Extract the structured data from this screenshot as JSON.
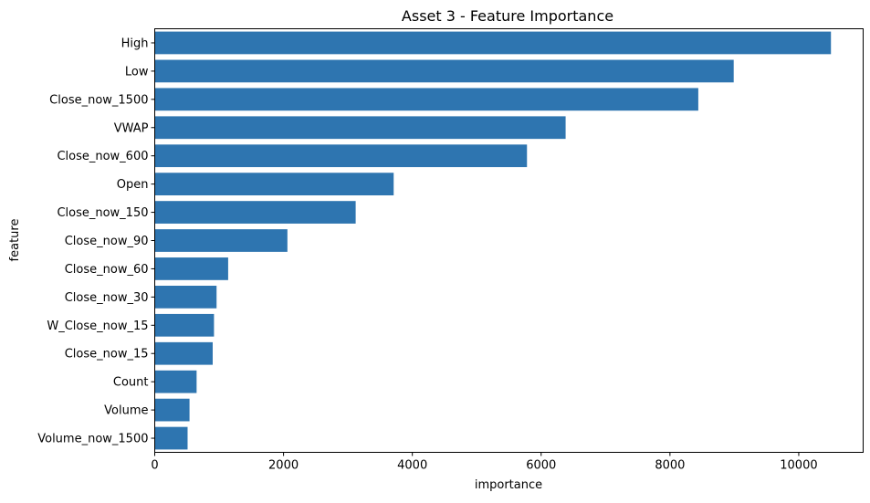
{
  "chart_data": {
    "type": "bar",
    "orientation": "horizontal",
    "title": "Asset 3 - Feature Importance",
    "xlabel": "importance",
    "ylabel": "feature",
    "xlim": [
      0,
      11000
    ],
    "xticks": [
      0,
      2000,
      4000,
      6000,
      8000,
      10000
    ],
    "grid": false,
    "bar_color": "#2e75b0",
    "categories": [
      "High",
      "Low",
      "Close_now_1500",
      "VWAP",
      "Close_now_600",
      "Open",
      "Close_now_150",
      "Close_now_90",
      "Close_now_60",
      "Close_now_30",
      "W_Close_now_15",
      "Close_now_15",
      "Count",
      "Volume",
      "Volume_now_1500"
    ],
    "values": [
      10500,
      8990,
      8440,
      6380,
      5780,
      3710,
      3120,
      2060,
      1140,
      960,
      920,
      900,
      650,
      540,
      510
    ]
  }
}
